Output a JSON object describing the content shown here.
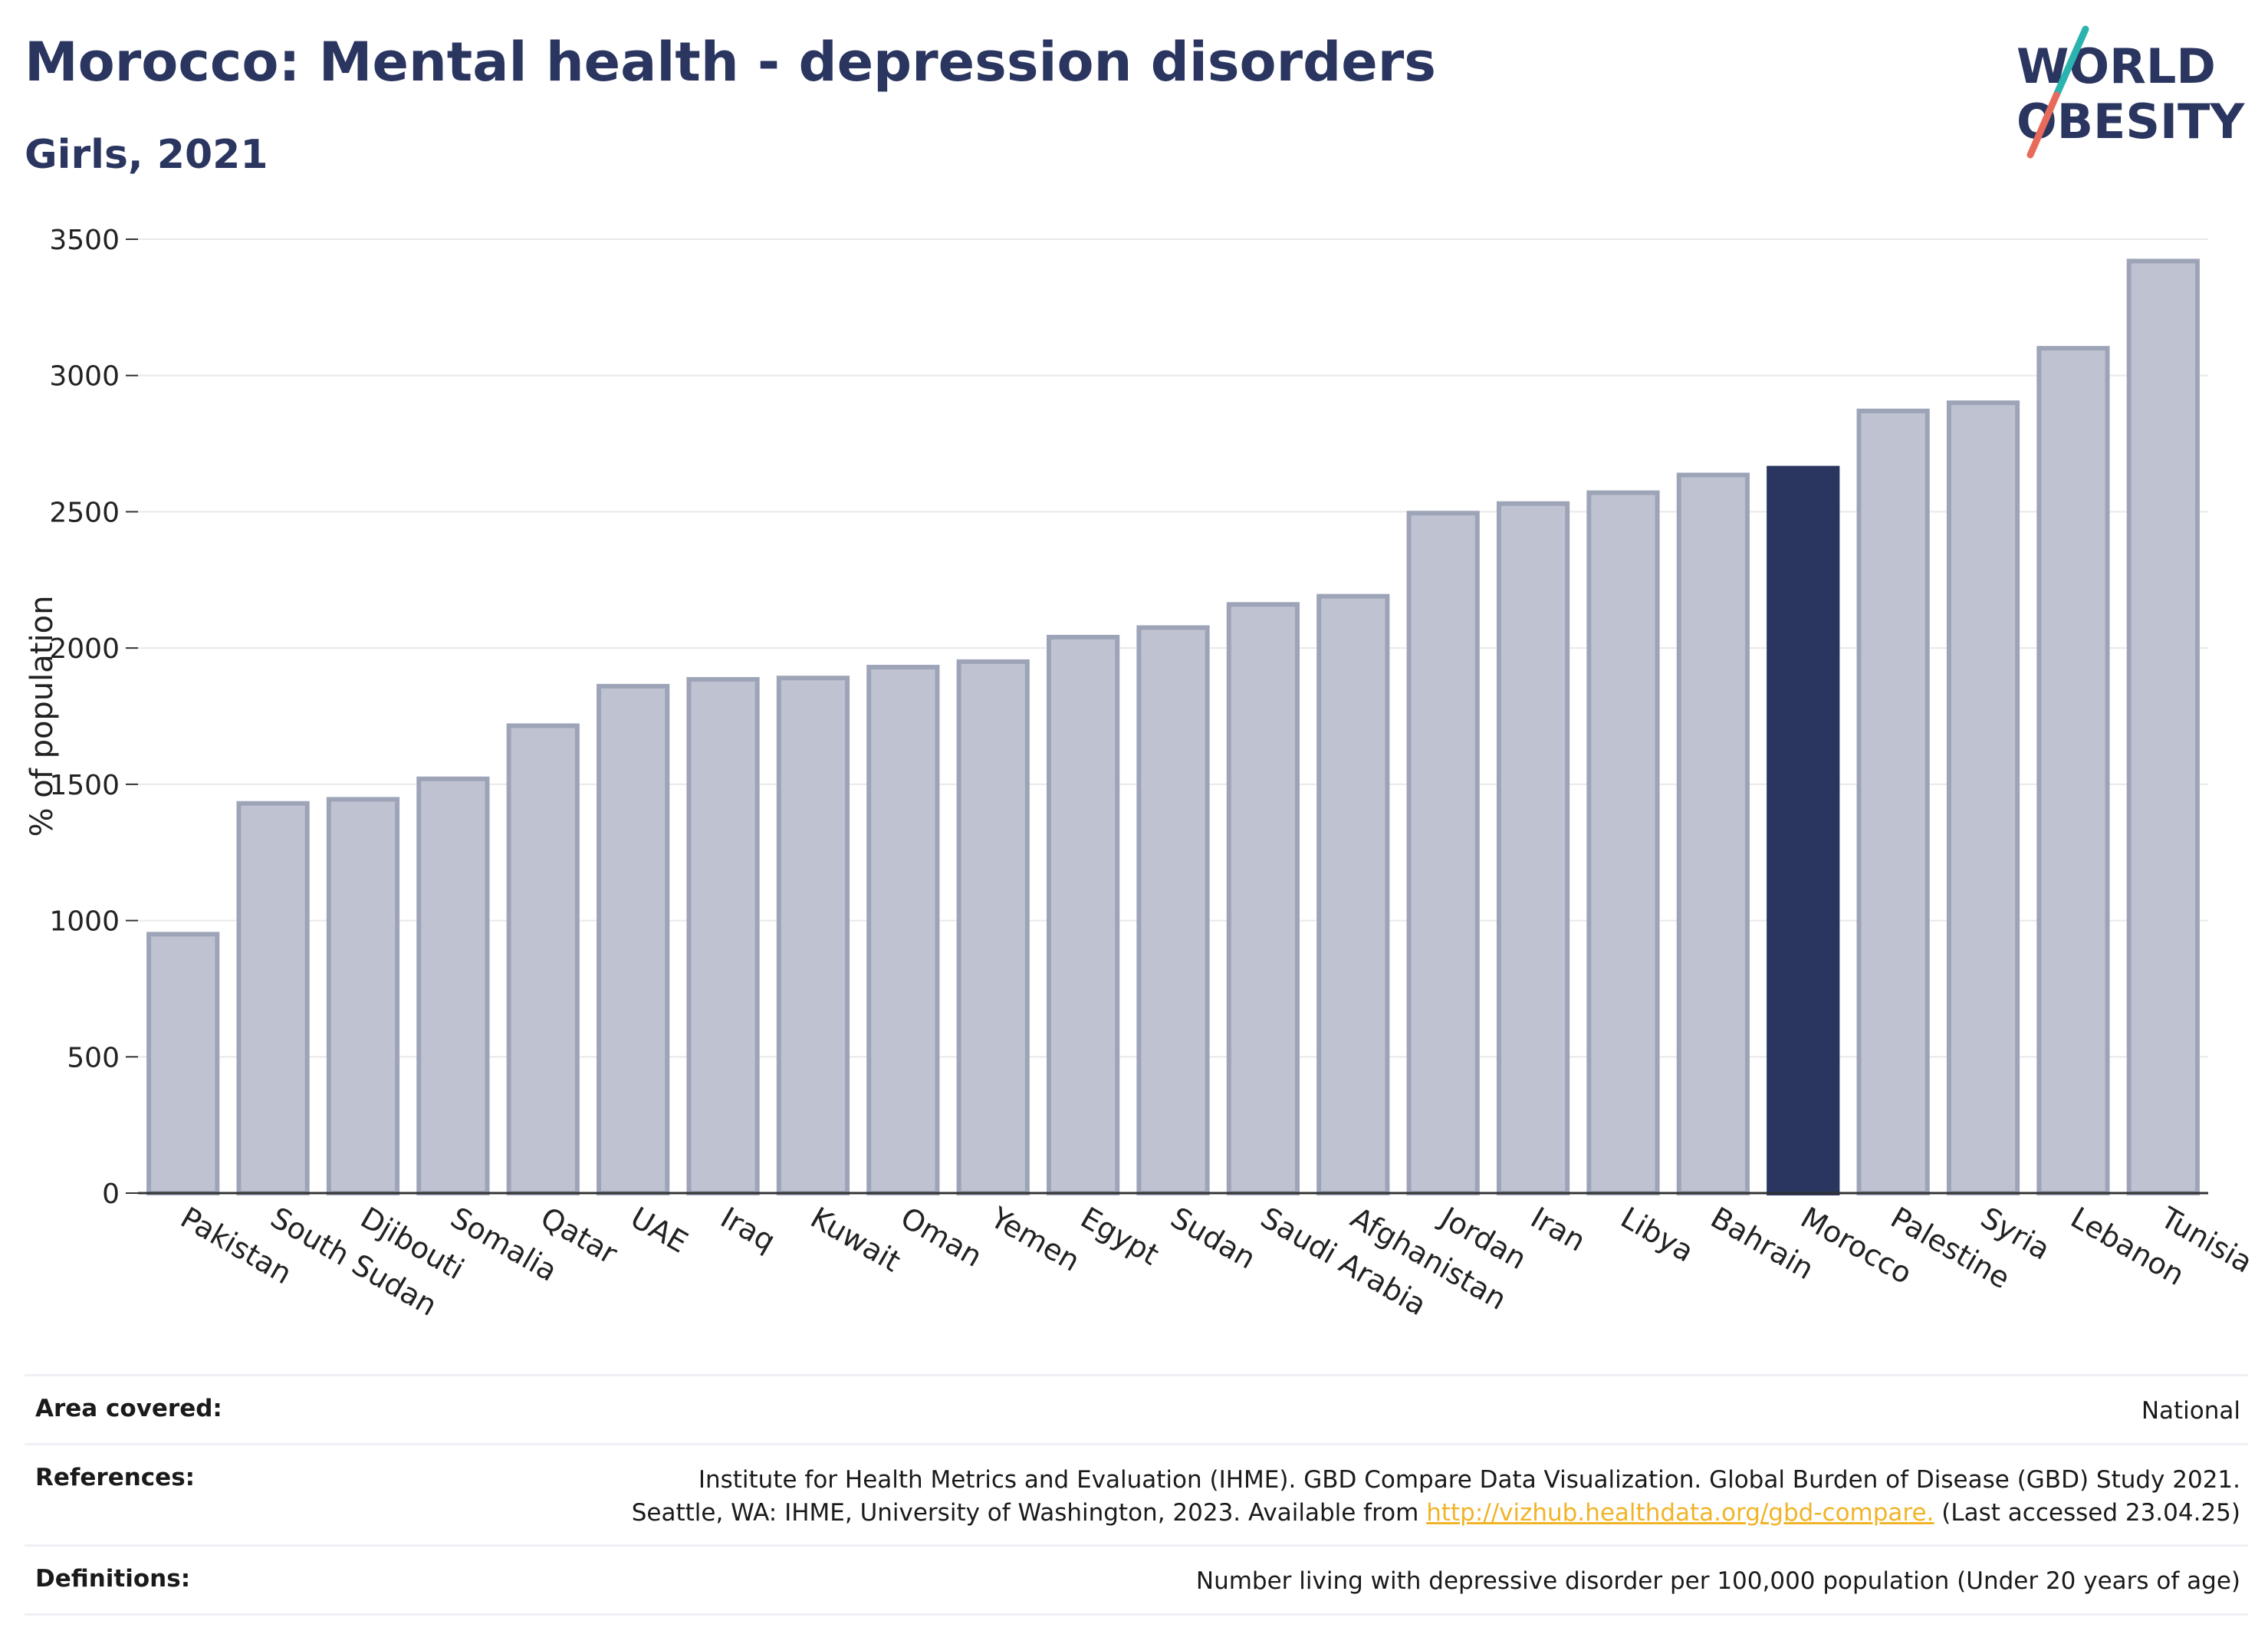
{
  "title": "Morocco: Mental health - depression disorders",
  "subtitle": "Girls, 2021",
  "logo": {
    "line1": "WORLD",
    "line2": "OBESITY",
    "colors": {
      "teal": "#2bb3b0",
      "coral": "#e86a5a",
      "navy": "#2a3560"
    }
  },
  "colors": {
    "highlight": "#2a3560",
    "bar_fill": "#bfc3d1",
    "bar_stroke": "#9ea4b8",
    "grid": "#e8e8ee"
  },
  "chart_data": {
    "type": "bar",
    "ylabel": "% of population",
    "xlabel": "",
    "ylim": [
      0,
      3500
    ],
    "yticks": [
      0,
      500,
      1000,
      1500,
      2000,
      2500,
      3000,
      3500
    ],
    "grid": true,
    "highlight": "Morocco",
    "categories": [
      "Pakistan",
      "South Sudan",
      "Djibouti",
      "Somalia",
      "Qatar",
      "UAE",
      "Iraq",
      "Kuwait",
      "Oman",
      "Yemen",
      "Egypt",
      "Sudan",
      "Saudi Arabia",
      "Afghanistan",
      "Jordan",
      "Iran",
      "Libya",
      "Bahrain",
      "Morocco",
      "Palestine",
      "Syria",
      "Lebanon",
      "Tunisia"
    ],
    "values": [
      950,
      1430,
      1445,
      1520,
      1715,
      1860,
      1885,
      1890,
      1930,
      1950,
      2040,
      2075,
      2160,
      2190,
      2495,
      2530,
      2570,
      2635,
      2660,
      2870,
      2900,
      3100,
      3420
    ]
  },
  "info": {
    "area_label": "Area covered:",
    "area_value": "National",
    "refs_label": "References:",
    "refs_line1": "Institute for Health Metrics and Evaluation (IHME). GBD Compare Data Visualization. Global Burden of Disease (GBD) Study 2021.",
    "refs_line2_pre": "Seattle, WA: IHME, University of Washington, 2023. Available from ",
    "refs_link": "http://vizhub.healthdata.org/gbd-compare.",
    "refs_line2_post": " (Last accessed 23.04.25)",
    "defs_label": "Definitions:",
    "defs_value": "Number living with depressive disorder per 100,000 population (Under 20 years of age)"
  }
}
